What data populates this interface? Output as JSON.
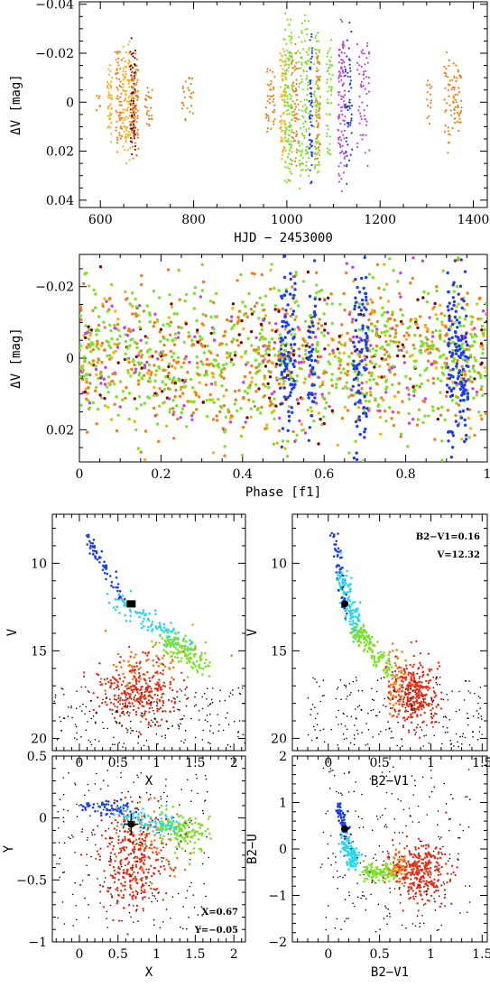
{
  "colors": {
    "orange": "#f07f1d",
    "gold": "#f5b21a",
    "green": "#7de029",
    "blue": "#1f3fe6",
    "magenta": "#c643d8",
    "cyan": "#2ad6ea",
    "red": "#e52b15",
    "darkred": "#7a0a0a",
    "black": "#000000"
  },
  "chart_data": [
    {
      "type": "scatter",
      "name": "light-curve",
      "xlabel": "HJD − 2453000",
      "ylabel": "ΔV [mag]",
      "xlim": [
        555,
        1430
      ],
      "ylim": [
        0.043,
        -0.041
      ],
      "xticks": [
        "600",
        "800",
        "1000",
        "1200",
        "1400"
      ],
      "xtick_values": [
        600,
        800,
        1000,
        1200,
        1400
      ],
      "yticks": [
        "−0.04",
        "−0.02",
        "0",
        "0.02",
        "0.04"
      ],
      "ytick_values": [
        -0.04,
        -0.02,
        0,
        0.02,
        0.04
      ],
      "segments": [
        {
          "x": [
            590,
            600
          ],
          "amp": 0.005,
          "color": "orange",
          "n": 6
        },
        {
          "x": [
            615,
            625
          ],
          "amp": 0.022,
          "color": "gold",
          "n": 45
        },
        {
          "x": [
            632,
            646
          ],
          "amp": 0.026,
          "color": "orange",
          "n": 60
        },
        {
          "x": [
            648,
            664
          ],
          "amp": 0.026,
          "color": "gold",
          "n": 90
        },
        {
          "x": [
            664,
            676
          ],
          "amp": 0.028,
          "color": "darkred",
          "n": 70
        },
        {
          "x": [
            666,
            682
          ],
          "amp": 0.026,
          "color": "orange",
          "n": 80
        },
        {
          "x": [
            695,
            712
          ],
          "amp": 0.012,
          "color": "orange",
          "n": 25
        },
        {
          "x": [
            775,
            800
          ],
          "amp": 0.012,
          "color": "orange",
          "n": 25
        },
        {
          "x": [
            955,
            975
          ],
          "amp": 0.015,
          "color": "orange",
          "n": 40
        },
        {
          "x": [
            985,
            1000
          ],
          "amp": 0.03,
          "color": "gold",
          "n": 80
        },
        {
          "x": [
            995,
            1012
          ],
          "amp": 0.038,
          "color": "green",
          "n": 130
        },
        {
          "x": [
            1010,
            1024
          ],
          "amp": 0.03,
          "color": "orange",
          "n": 60
        },
        {
          "x": [
            1024,
            1048
          ],
          "amp": 0.038,
          "color": "green",
          "n": 120
        },
        {
          "x": [
            1048,
            1055
          ],
          "amp": 0.037,
          "color": "blue",
          "n": 60
        },
        {
          "x": [
            1058,
            1070
          ],
          "amp": 0.035,
          "color": "green",
          "n": 70
        },
        {
          "x": [
            1062,
            1072
          ],
          "amp": 0.03,
          "color": "orange",
          "n": 50
        },
        {
          "x": [
            1085,
            1098
          ],
          "amp": 0.03,
          "color": "green",
          "n": 50
        },
        {
          "x": [
            1110,
            1125
          ],
          "amp": 0.039,
          "color": "magenta",
          "n": 100
        },
        {
          "x": [
            1125,
            1140
          ],
          "amp": 0.036,
          "color": "blue",
          "n": 55
        },
        {
          "x": [
            1150,
            1178
          ],
          "amp": 0.03,
          "color": "magenta",
          "n": 60
        },
        {
          "x": [
            1300,
            1312
          ],
          "amp": 0.012,
          "color": "orange",
          "n": 15
        },
        {
          "x": [
            1338,
            1350
          ],
          "amp": 0.022,
          "color": "orange",
          "n": 30
        },
        {
          "x": [
            1352,
            1375
          ],
          "amp": 0.018,
          "color": "orange",
          "n": 55
        }
      ]
    },
    {
      "type": "scatter",
      "name": "phase-curve",
      "xlabel": "Phase [f1]",
      "ylabel": "ΔV [mag]",
      "xlim": [
        0,
        1
      ],
      "ylim": [
        0.029,
        -0.029
      ],
      "xticks": [
        "0",
        "0.2",
        "0.4",
        "0.6",
        "0.8",
        "1"
      ],
      "xtick_values": [
        0,
        0.2,
        0.4,
        0.6,
        0.8,
        1
      ],
      "yticks": [
        "−0.02",
        "0",
        "0.02"
      ],
      "ytick_values": [
        -0.02,
        0,
        0.02
      ],
      "series_colors": [
        "green",
        "orange",
        "magenta",
        "gold",
        "darkred"
      ],
      "blue_columns": [
        0.5,
        0.52,
        0.57,
        0.68,
        0.7,
        0.91,
        0.93,
        0.945
      ]
    },
    {
      "type": "scatter",
      "name": "cmd-X-V",
      "xlabel": "X",
      "ylabel": "V",
      "xlim": [
        -0.35,
        2.15
      ],
      "ylim": [
        20.7,
        7.2
      ],
      "xticks": [
        "0",
        "0.5",
        "1",
        "1.5",
        "2"
      ],
      "xtick_values": [
        0,
        0.5,
        1,
        1.5,
        2
      ],
      "yticks": [
        "10",
        "15",
        "20"
      ],
      "ytick_values": [
        10,
        15,
        20
      ],
      "star": {
        "x": 0.67,
        "y": 12.32
      }
    },
    {
      "type": "scatter",
      "name": "cmd-BV-V",
      "xlabel": "B2−V1",
      "ylabel": "V",
      "xlim": [
        -0.35,
        1.55
      ],
      "ylim": [
        20.7,
        7.2
      ],
      "xticks": [
        "0",
        "0.5",
        "1",
        "1.5"
      ],
      "xtick_values": [
        0,
        0.5,
        1,
        1.5
      ],
      "yticks": [
        "10",
        "15",
        "20"
      ],
      "ytick_values": [
        10,
        15,
        20
      ],
      "star": {
        "x": 0.16,
        "y": 12.32
      },
      "annotations": [
        "B2−V1=0.16",
        "V=12.32"
      ]
    },
    {
      "type": "scatter",
      "name": "cc-X-Y",
      "xlabel": "X",
      "ylabel": "Y",
      "xlim": [
        -0.35,
        2.15
      ],
      "ylim": [
        -1,
        0.5
      ],
      "xticks": [
        "0",
        "0.5",
        "1",
        "1.5",
        "2"
      ],
      "xtick_values": [
        0,
        0.5,
        1,
        1.5,
        2
      ],
      "yticks": [
        "0.5",
        "0",
        "−0.5",
        "−1"
      ],
      "ytick_values": [
        0.5,
        0,
        -0.5,
        -1
      ],
      "star": {
        "x": 0.67,
        "y": -0.05
      },
      "annotations": [
        "X=0.67",
        "Y=−0.05"
      ]
    },
    {
      "type": "scatter",
      "name": "cc-BV-BU",
      "xlabel": "B2−V1",
      "ylabel": "B2−U",
      "xlim": [
        -0.35,
        1.55
      ],
      "ylim": [
        -2,
        2
      ],
      "xticks": [
        "0",
        "0.5",
        "1",
        "1.5"
      ],
      "xtick_values": [
        0,
        0.5,
        1,
        1.5
      ],
      "yticks": [
        "2",
        "1",
        "0",
        "−1",
        "−2"
      ],
      "ytick_values": [
        2,
        1,
        0,
        -1,
        -2
      ],
      "star": {
        "x": 0.16,
        "y": 0.43
      }
    }
  ]
}
